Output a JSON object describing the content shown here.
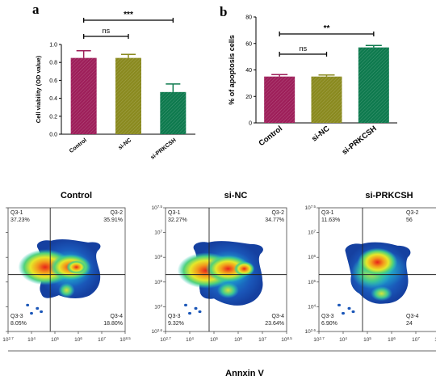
{
  "chart_data": [
    {
      "type": "bar",
      "panel": "a",
      "categories": [
        "Control",
        "si-NC",
        "si-PRKCSH"
      ],
      "values": [
        0.85,
        0.85,
        0.47
      ],
      "errors": [
        0.08,
        0.04,
        0.09
      ],
      "colors": [
        "#9e1f5a",
        "#8a8a1f",
        "#0e7a4e"
      ],
      "ylabel": "Cell viability (OD value)",
      "ylim": [
        0,
        1.0
      ],
      "yticks": [
        "0.0",
        "0.2",
        "0.4",
        "0.6",
        "0.8",
        "1.0"
      ],
      "comparisons": [
        {
          "from": 0,
          "to": 1,
          "label": "ns"
        },
        {
          "from": 0,
          "to": 2,
          "label": "***"
        }
      ]
    },
    {
      "type": "bar",
      "panel": "b",
      "categories": [
        "Control",
        "si-NC",
        "si-PRKCSH"
      ],
      "values": [
        35,
        35,
        57
      ],
      "errors": [
        1.5,
        1.2,
        1.5
      ],
      "colors": [
        "#9e1f5a",
        "#8a8a1f",
        "#0e7a4e"
      ],
      "ylabel": "% of apoptosis cells",
      "ylim": [
        0,
        80
      ],
      "yticks": [
        "0",
        "20",
        "40",
        "60",
        "80"
      ],
      "comparisons": [
        {
          "from": 0,
          "to": 1,
          "label": "ns"
        },
        {
          "from": 0,
          "to": 2,
          "label": "**"
        }
      ]
    },
    {
      "type": "flow-cytometry",
      "xlabel": "Annxin V",
      "plots": [
        {
          "title": "Control",
          "quadrants": [
            {
              "name": "Q3-1",
              "value": "37.23%"
            },
            {
              "name": "Q3-2",
              "value": "35.91%"
            },
            {
              "name": "Q3-3",
              "value": "8.05%"
            },
            {
              "name": "Q3-4",
              "value": "18.80%"
            }
          ]
        },
        {
          "title": "si-NC",
          "quadrants": [
            {
              "name": "Q3-1",
              "value": "32.27%"
            },
            {
              "name": "Q3-2",
              "value": "34.77%"
            },
            {
              "name": "Q3-3",
              "value": "9.32%"
            },
            {
              "name": "Q3-4",
              "value": "23.64%"
            }
          ]
        },
        {
          "title": "si-PRKCSH",
          "quadrants": [
            {
              "name": "Q3-1",
              "value": "11.63%"
            },
            {
              "name": "Q3-2",
              "value": "56"
            },
            {
              "name": "Q3-3",
              "value": "6.90%"
            },
            {
              "name": "Q3-4",
              "value": "24"
            }
          ]
        }
      ],
      "xticks": [
        "10",
        "10",
        "10",
        "10",
        "10",
        "10"
      ],
      "xtick_exp": [
        "2.7",
        "4",
        "5",
        "6",
        "7",
        "8.5"
      ],
      "yticks": [
        "10",
        "10",
        "10",
        "10",
        "10",
        "10"
      ],
      "ytick_exp": [
        "2.6",
        "4",
        "5",
        "6",
        "7",
        "7.5"
      ]
    }
  ],
  "labels": {
    "a": "a",
    "b": "b"
  }
}
